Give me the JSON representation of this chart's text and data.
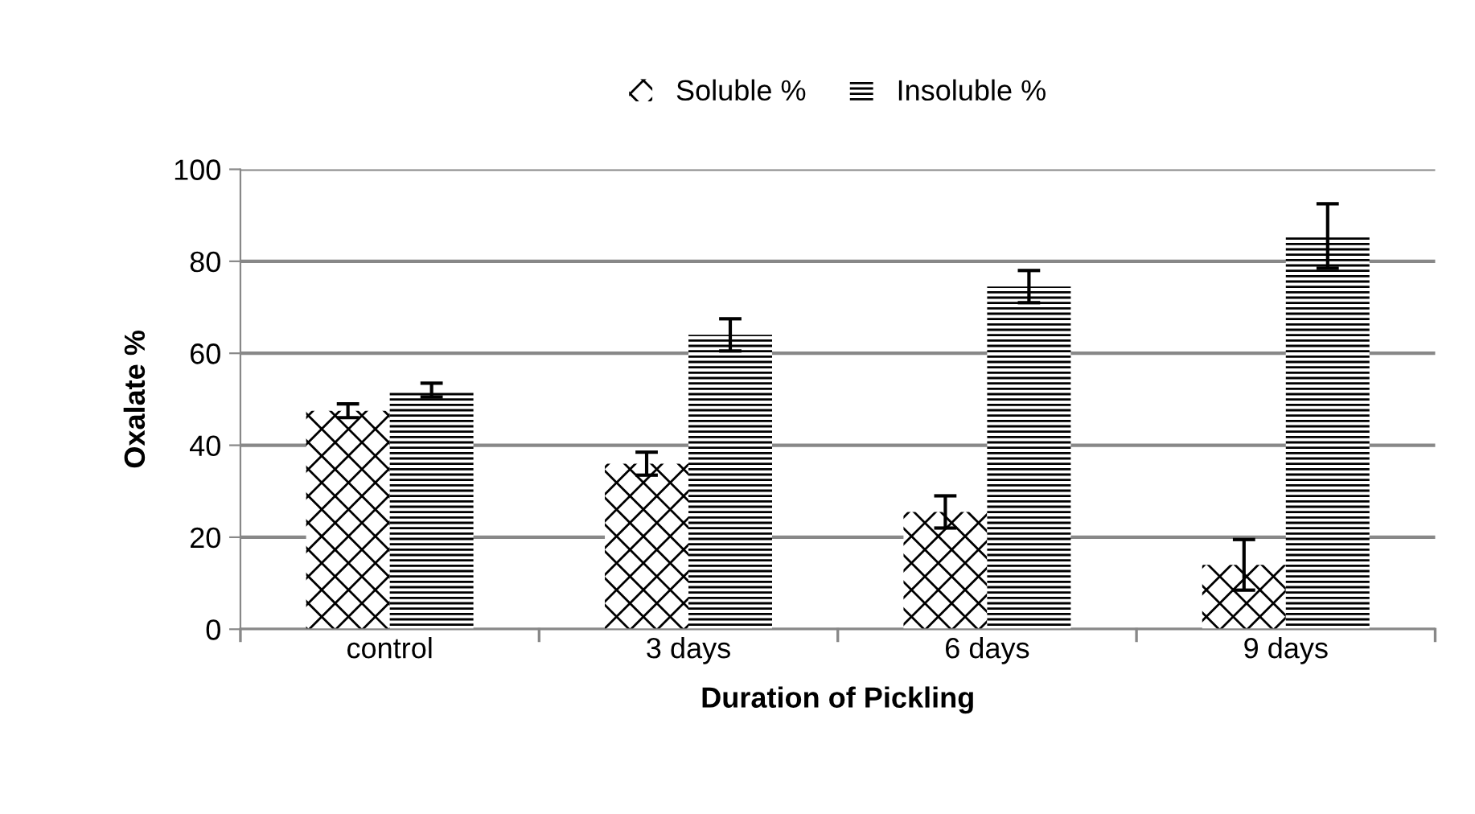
{
  "chart_data": {
    "type": "bar",
    "xlabel": "Duration of Pickling",
    "ylabel": "Oxalate %",
    "categories": [
      "control",
      "3 days",
      "6 days",
      "9 days"
    ],
    "series": [
      {
        "name": "Soluble %",
        "color": "#000000",
        "values": [
          47.5,
          36,
          25.5,
          14
        ],
        "errors": [
          1.5,
          2.5,
          3.5,
          5.5
        ]
      },
      {
        "name": "Insoluble %",
        "color": "#000000",
        "values": [
          52,
          64,
          74.5,
          85.5
        ],
        "errors": [
          1.5,
          3.5,
          3.5,
          7
        ]
      }
    ],
    "ylim": [
      0,
      100
    ],
    "yticks": [
      0,
      20,
      40,
      60,
      80,
      100
    ],
    "grid": "y",
    "legend": "top"
  }
}
